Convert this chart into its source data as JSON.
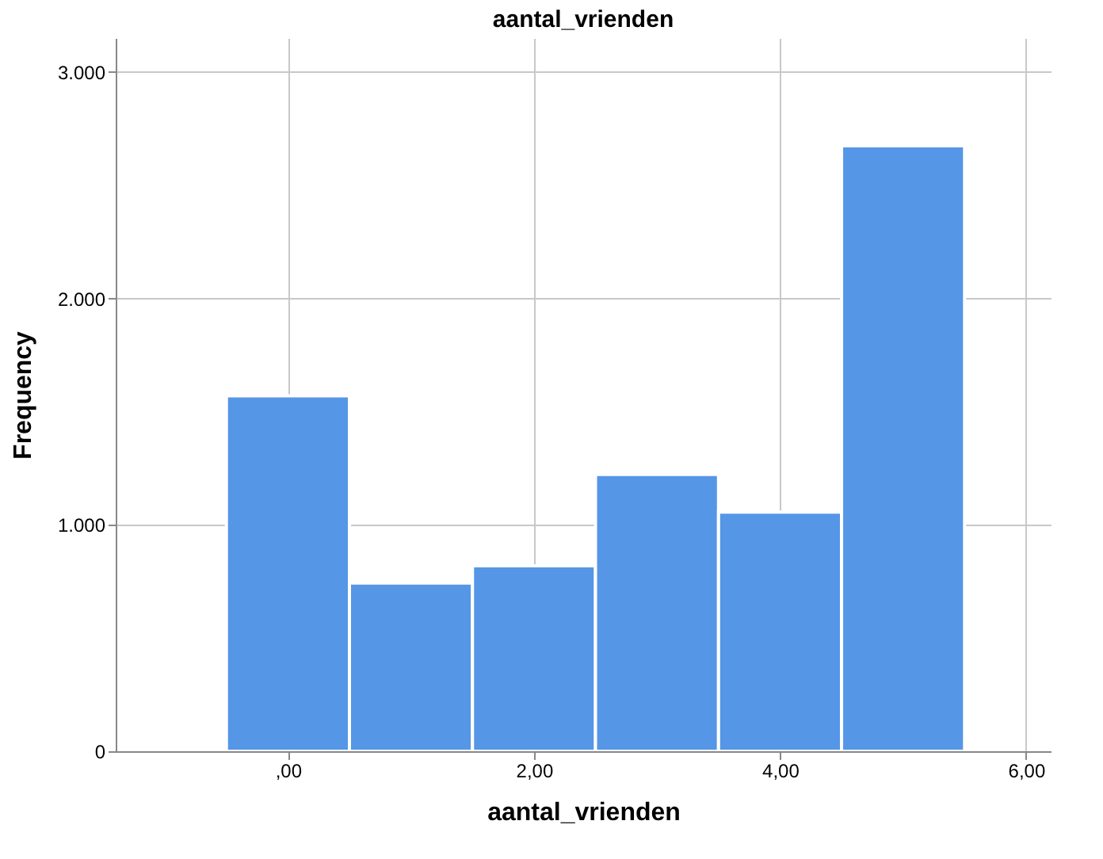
{
  "chart_data": {
    "type": "histogram",
    "title": "aantal_vrienden",
    "xlabel": "aantal_vrienden",
    "ylabel": "Frequency",
    "bins": [
      -0.5,
      0.5,
      1.5,
      2.5,
      3.5,
      4.5,
      5.5
    ],
    "values": [
      1570,
      743,
      819,
      1222,
      1056,
      2674
    ],
    "color": "#5596e6",
    "xlim": [
      -1.4,
      6.2
    ],
    "xticks": [
      {
        "value": 0,
        "label": ",00"
      },
      {
        "value": 2,
        "label": "2,00"
      },
      {
        "value": 4,
        "label": "4,00"
      },
      {
        "value": 6,
        "label": "6,00"
      }
    ],
    "ylim": [
      0,
      3150
    ],
    "yticks": [
      {
        "value": 0,
        "label": "0"
      },
      {
        "value": 1000,
        "label": "1.000"
      },
      {
        "value": 2000,
        "label": "2.000"
      },
      {
        "value": 3000,
        "label": "3.000"
      }
    ],
    "grid": true
  }
}
